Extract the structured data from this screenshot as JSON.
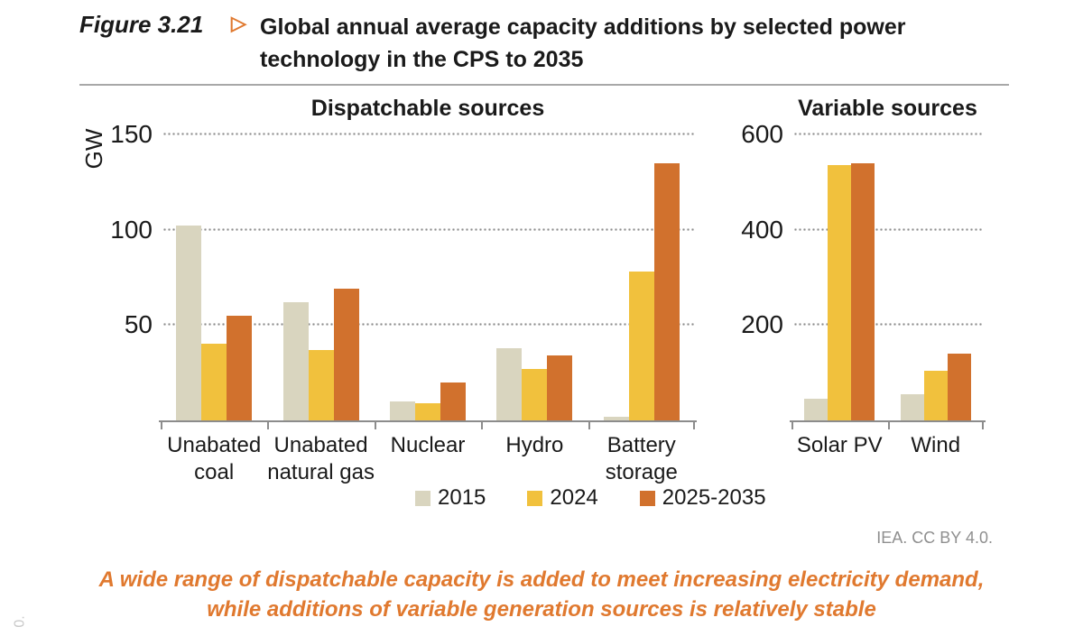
{
  "header": {
    "figure_label": "Figure 3.21",
    "arrow_icon": "▷",
    "title_line1": "Global annual average capacity additions by selected power",
    "title_line2": "technology in the CPS to 2035"
  },
  "chart_data": [
    {
      "type": "bar",
      "title": "Dispatchable sources",
      "ylabel": "GW",
      "ylim": [
        0,
        158
      ],
      "yticks": [
        50,
        100,
        150
      ],
      "grid": "dotted-horizontal",
      "categories": [
        "Unabated coal",
        "Unabated natural gas",
        "Nuclear",
        "Hydro",
        "Battery storage"
      ],
      "category_lines": [
        [
          "Unabated",
          "coal"
        ],
        [
          "Unabated",
          "natural gas"
        ],
        [
          "Nuclear"
        ],
        [
          "Hydro"
        ],
        [
          "Battery",
          "storage"
        ]
      ],
      "series": [
        {
          "name": "2015",
          "values": [
            102,
            62,
            10,
            38,
            2
          ]
        },
        {
          "name": "2024",
          "values": [
            40,
            37,
            9,
            27,
            78
          ]
        },
        {
          "name": "2025-2035",
          "values": [
            55,
            69,
            20,
            34,
            135
          ]
        }
      ]
    },
    {
      "type": "bar",
      "title": "Variable sources",
      "ylabel": "GW",
      "ylim": [
        0,
        630
      ],
      "yticks": [
        200,
        400,
        600
      ],
      "grid": "dotted-horizontal",
      "categories": [
        "Solar PV",
        "Wind"
      ],
      "category_lines": [
        [
          "Solar PV"
        ],
        [
          "Wind"
        ]
      ],
      "series": [
        {
          "name": "2015",
          "values": [
            45,
            55
          ]
        },
        {
          "name": "2024",
          "values": [
            535,
            105
          ]
        },
        {
          "name": "2025-2035",
          "values": [
            540,
            140
          ]
        }
      ]
    }
  ],
  "legend": {
    "items": [
      {
        "label": "2015",
        "color": "#D9D5BF"
      },
      {
        "label": "2024",
        "color": "#F1C13D"
      },
      {
        "label": "2025-2035",
        "color": "#D1712D"
      }
    ],
    "position": "bottom"
  },
  "source": "IEA. CC BY 4.0.",
  "caption": {
    "line1": "A wide range of dispatchable capacity is added to meet increasing electricity demand,",
    "line2": "while additions of variable generation sources is relatively stable"
  },
  "edge_text": "0.",
  "colors": {
    "accent_orange": "#E0792F",
    "grid_dots": "#8C8C8C",
    "axis_line": "#8C8C8C",
    "text": "#1A1A1A",
    "source_gray": "#8F8F8F"
  }
}
